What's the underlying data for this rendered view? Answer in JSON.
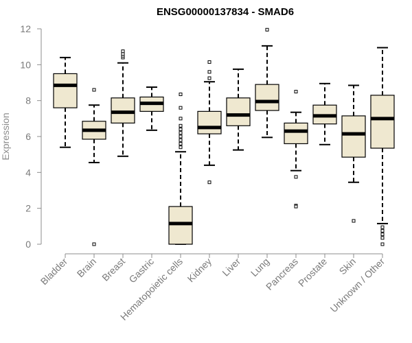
{
  "chart_data": {
    "type": "boxplot",
    "title": "ENSG00000137834 - SMAD6",
    "xlabel": "",
    "ylabel": "Expression",
    "ylim": [
      0,
      12
    ],
    "yticks": [
      0,
      2,
      4,
      6,
      8,
      10,
      12
    ],
    "categories": [
      "Bladder",
      "Brain",
      "Breast",
      "Gastric",
      "Hematopoietic cells",
      "Kidney",
      "Liver",
      "Lung",
      "Pancreas",
      "Prostate",
      "Skin",
      "Unknown / Other"
    ],
    "boxes": [
      {
        "category": "Bladder",
        "whisker_low": 5.4,
        "q1": 7.6,
        "median": 8.85,
        "q3": 9.5,
        "whisker_high": 10.4,
        "outliers": []
      },
      {
        "category": "Brain",
        "whisker_low": 4.55,
        "q1": 5.85,
        "median": 6.35,
        "q3": 6.85,
        "whisker_high": 7.75,
        "outliers": [
          8.6,
          0.0
        ]
      },
      {
        "category": "Breast",
        "whisker_low": 4.9,
        "q1": 6.75,
        "median": 7.35,
        "q3": 8.15,
        "whisker_high": 10.1,
        "outliers": [
          10.4,
          10.5,
          10.6,
          10.75
        ]
      },
      {
        "category": "Gastric",
        "whisker_low": 6.35,
        "q1": 7.4,
        "median": 7.85,
        "q3": 8.2,
        "whisker_high": 8.75,
        "outliers": []
      },
      {
        "category": "Hematopoietic cells",
        "whisker_low": 0.0,
        "q1": 0.0,
        "median": 1.15,
        "q3": 2.1,
        "whisker_high": 5.15,
        "outliers": [
          8.35,
          7.6,
          7.0,
          6.6,
          6.4,
          6.2,
          6.0,
          5.8,
          5.6,
          5.4
        ]
      },
      {
        "category": "Kidney",
        "whisker_low": 4.4,
        "q1": 6.15,
        "median": 6.5,
        "q3": 7.4,
        "whisker_high": 9.05,
        "outliers": [
          10.15,
          9.6,
          9.25,
          3.45
        ]
      },
      {
        "category": "Liver",
        "whisker_low": 5.25,
        "q1": 6.6,
        "median": 7.2,
        "q3": 8.15,
        "whisker_high": 9.75,
        "outliers": []
      },
      {
        "category": "Lung",
        "whisker_low": 5.95,
        "q1": 7.45,
        "median": 7.95,
        "q3": 8.9,
        "whisker_high": 11.05,
        "outliers": [
          11.95
        ]
      },
      {
        "category": "Pancreas",
        "whisker_low": 4.1,
        "q1": 5.6,
        "median": 6.3,
        "q3": 6.75,
        "whisker_high": 7.35,
        "outliers": [
          8.5,
          3.75,
          2.15,
          2.1
        ]
      },
      {
        "category": "Prostate",
        "whisker_low": 5.55,
        "q1": 6.7,
        "median": 7.15,
        "q3": 7.75,
        "whisker_high": 8.95,
        "outliers": []
      },
      {
        "category": "Skin",
        "whisker_low": 3.45,
        "q1": 4.85,
        "median": 6.15,
        "q3": 7.15,
        "whisker_high": 8.85,
        "outliers": [
          1.3
        ]
      },
      {
        "category": "Unknown / Other",
        "whisker_low": 1.15,
        "q1": 5.35,
        "median": 7.0,
        "q3": 8.3,
        "whisker_high": 10.95,
        "outliers": [
          0.95,
          0.75,
          0.55,
          0.35,
          0.0
        ]
      }
    ],
    "box_fill": "#efe8d0",
    "box_stroke": "#000000",
    "axis_color": "#8c8c8c"
  }
}
